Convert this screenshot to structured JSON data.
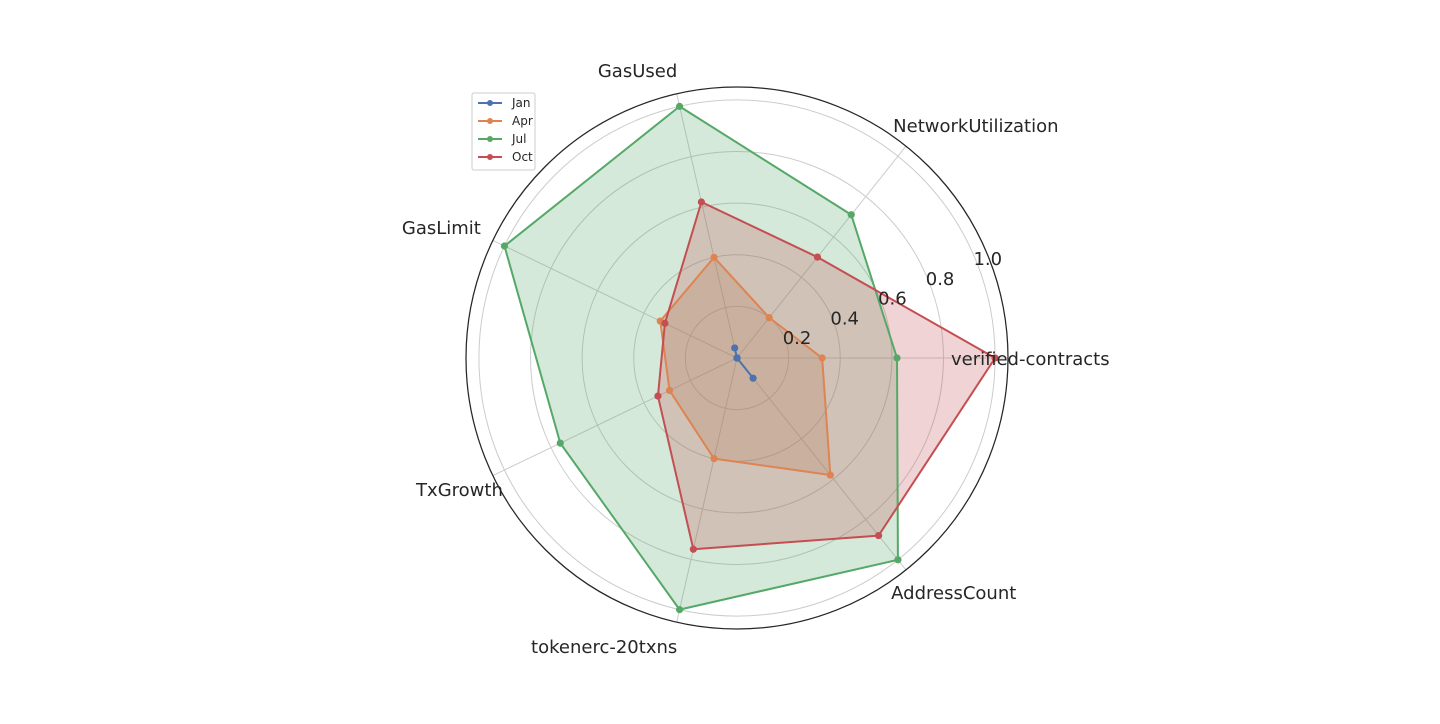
{
  "chart_data": {
    "type": "radar",
    "axes": [
      "verified-contracts",
      "NetworkUtilization",
      "GasUsed",
      "GasLimit",
      "TxGrowth",
      "tokenerc-20txns",
      "AddressCount"
    ],
    "rlim": [
      0,
      1.05
    ],
    "radial_ticks": [
      0.2,
      0.4,
      0.6,
      0.8,
      1.0
    ],
    "radial_tick_labels": [
      "0.2",
      "0.4",
      "0.6",
      "0.8",
      "1.0"
    ],
    "grid": true,
    "legend_position": "top-left",
    "series": [
      {
        "name": "Jan",
        "color": "#4c72b0",
        "values": [
          0.0,
          0.0,
          0.04,
          0.0,
          0.0,
          0.0,
          0.1
        ],
        "fill": false
      },
      {
        "name": "Apr",
        "color": "#dd8452",
        "values": [
          0.33,
          0.2,
          0.4,
          0.33,
          0.29,
          0.4,
          0.58
        ],
        "fill": true
      },
      {
        "name": "Jul",
        "color": "#55a868",
        "values": [
          0.62,
          0.71,
          1.0,
          1.0,
          0.76,
          1.0,
          1.0
        ],
        "fill": true
      },
      {
        "name": "Oct",
        "color": "#c44e52",
        "values": [
          1.0,
          0.5,
          0.62,
          0.31,
          0.34,
          0.76,
          0.88
        ],
        "fill": true
      }
    ]
  }
}
